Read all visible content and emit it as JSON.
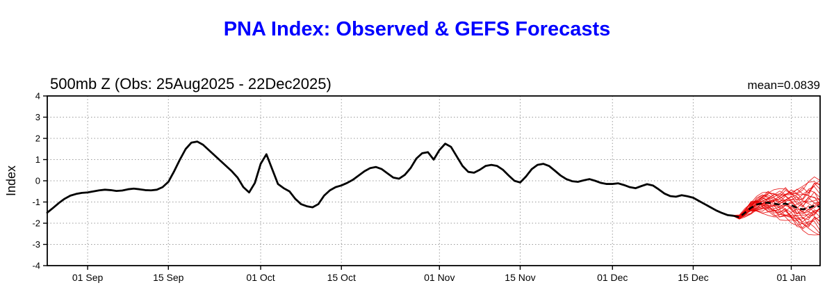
{
  "page": {
    "title": "PNA Index: Observed & GEFS Forecasts",
    "subtitle": "500mb Z (Obs: 25Aug2025 - 22Dec2025)",
    "mean_label": "mean=0.0839",
    "ylabel": "Index"
  },
  "colors": {
    "title": "#0000ff",
    "observed": "#000000",
    "ensemble": "#e60000",
    "forecast_mean": "#000000",
    "grid": "#999999"
  },
  "chart_data": {
    "type": "line",
    "title": "PNA Index: Observed & GEFS Forecasts",
    "subtitle": "500mb Z (Obs: 25Aug2025 - 22Dec2025)",
    "mean_annotation": "mean=0.0839",
    "ylabel": "Index",
    "x_start_date": "25Aug2025",
    "obs_end_date": "22Dec2025",
    "xlim": [
      0,
      134
    ],
    "ylim": [
      -4,
      4
    ],
    "grid": true,
    "yticks": [
      -4,
      -3,
      -2,
      -1,
      0,
      1,
      2,
      3,
      4
    ],
    "xticks": [
      {
        "day": 7,
        "label": "01 Sep"
      },
      {
        "day": 21,
        "label": "15 Sep"
      },
      {
        "day": 37,
        "label": "01 Oct"
      },
      {
        "day": 51,
        "label": "15 Oct"
      },
      {
        "day": 68,
        "label": "01 Nov"
      },
      {
        "day": 82,
        "label": "15 Nov"
      },
      {
        "day": 98,
        "label": "01 Dec"
      },
      {
        "day": 112,
        "label": "15 Dec"
      },
      {
        "day": 129,
        "label": "01 Jan"
      }
    ],
    "observed": {
      "name": "Observed PNA index (daily)",
      "start_day": 0,
      "values": [
        -1.5,
        -1.28,
        -1.05,
        -0.85,
        -0.7,
        -0.62,
        -0.57,
        -0.55,
        -0.5,
        -0.45,
        -0.42,
        -0.44,
        -0.48,
        -0.46,
        -0.4,
        -0.37,
        -0.4,
        -0.44,
        -0.45,
        -0.42,
        -0.3,
        -0.05,
        0.45,
        1.0,
        1.5,
        1.8,
        1.85,
        1.7,
        1.45,
        1.2,
        0.95,
        0.7,
        0.45,
        0.15,
        -0.3,
        -0.55,
        -0.1,
        0.8,
        1.25,
        0.55,
        -0.15,
        -0.35,
        -0.5,
        -0.85,
        -1.1,
        -1.2,
        -1.25,
        -1.1,
        -0.7,
        -0.45,
        -0.3,
        -0.22,
        -0.1,
        0.05,
        0.25,
        0.45,
        0.6,
        0.65,
        0.55,
        0.35,
        0.15,
        0.1,
        0.28,
        0.6,
        1.05,
        1.3,
        1.35,
        1.0,
        1.45,
        1.75,
        1.6,
        1.15,
        0.7,
        0.42,
        0.38,
        0.52,
        0.7,
        0.75,
        0.7,
        0.52,
        0.25,
        0.0,
        -0.08,
        0.2,
        0.55,
        0.75,
        0.8,
        0.7,
        0.48,
        0.25,
        0.08,
        -0.02,
        -0.05,
        0.02,
        0.08,
        0.0,
        -0.1,
        -0.15,
        -0.15,
        -0.12,
        -0.2,
        -0.3,
        -0.35,
        -0.25,
        -0.16,
        -0.22,
        -0.4,
        -0.6,
        -0.72,
        -0.75,
        -0.68,
        -0.73,
        -0.8,
        -0.95,
        -1.1,
        -1.25,
        -1.4,
        -1.52,
        -1.62,
        -1.65
      ]
    },
    "forecast_mean": {
      "name": "GEFS ensemble mean (dashed)",
      "start_day": 119,
      "values": [
        -1.65,
        -1.72,
        -1.5,
        -1.28,
        -1.12,
        -1.05,
        -1.03,
        -1.08,
        -1.12,
        -1.08,
        -1.15,
        -1.28,
        -1.35,
        -1.28,
        -1.18,
        -1.22
      ]
    },
    "ensemble": {
      "name": "GEFS forecast members (spaghetti)",
      "start_day": 119,
      "member_count": 30,
      "spread": [
        0.02,
        0.08,
        0.15,
        0.22,
        0.3,
        0.38,
        0.45,
        0.52,
        0.6,
        0.68,
        0.75,
        0.85,
        0.95,
        1.05,
        1.12,
        1.18
      ]
    }
  }
}
